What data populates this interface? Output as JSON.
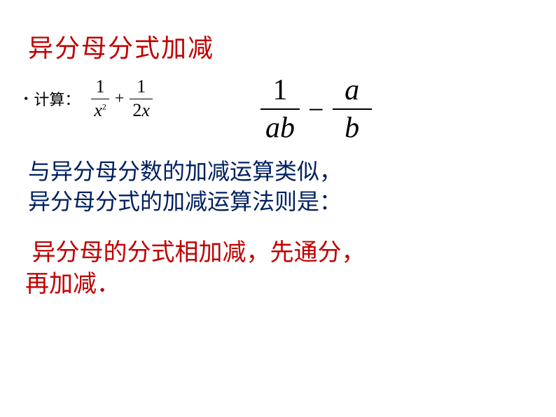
{
  "title": {
    "text": "异分母分式加减",
    "color": "#c00000",
    "fontsize": 36
  },
  "bullet": {
    "dot": "•",
    "label": "计算："
  },
  "expr1": {
    "f1": {
      "num": "1",
      "den_base": "x",
      "den_exp": "2"
    },
    "op": "+",
    "f2": {
      "num": "1",
      "den_coef": "2",
      "den_var": "x"
    },
    "color": "#000000"
  },
  "expr2": {
    "f1": {
      "num": "1",
      "den": "ab"
    },
    "op": "−",
    "f2": {
      "num": "a",
      "den": "b"
    },
    "color": "#000000"
  },
  "para1": {
    "line1": "与异分母分数的加减运算类似",
    "comma1": "，",
    "line2": "异分母分式的加减运算法则是",
    "colon": "：",
    "color": "#002060",
    "fontsize": 32
  },
  "para2": {
    "part1": "异分母的分式相加减",
    "comma1": "，",
    "part2": "先通分",
    "comma2": "，",
    "part3": "再加减",
    "period": "．",
    "color": "#c00000",
    "fontsize": 34
  }
}
